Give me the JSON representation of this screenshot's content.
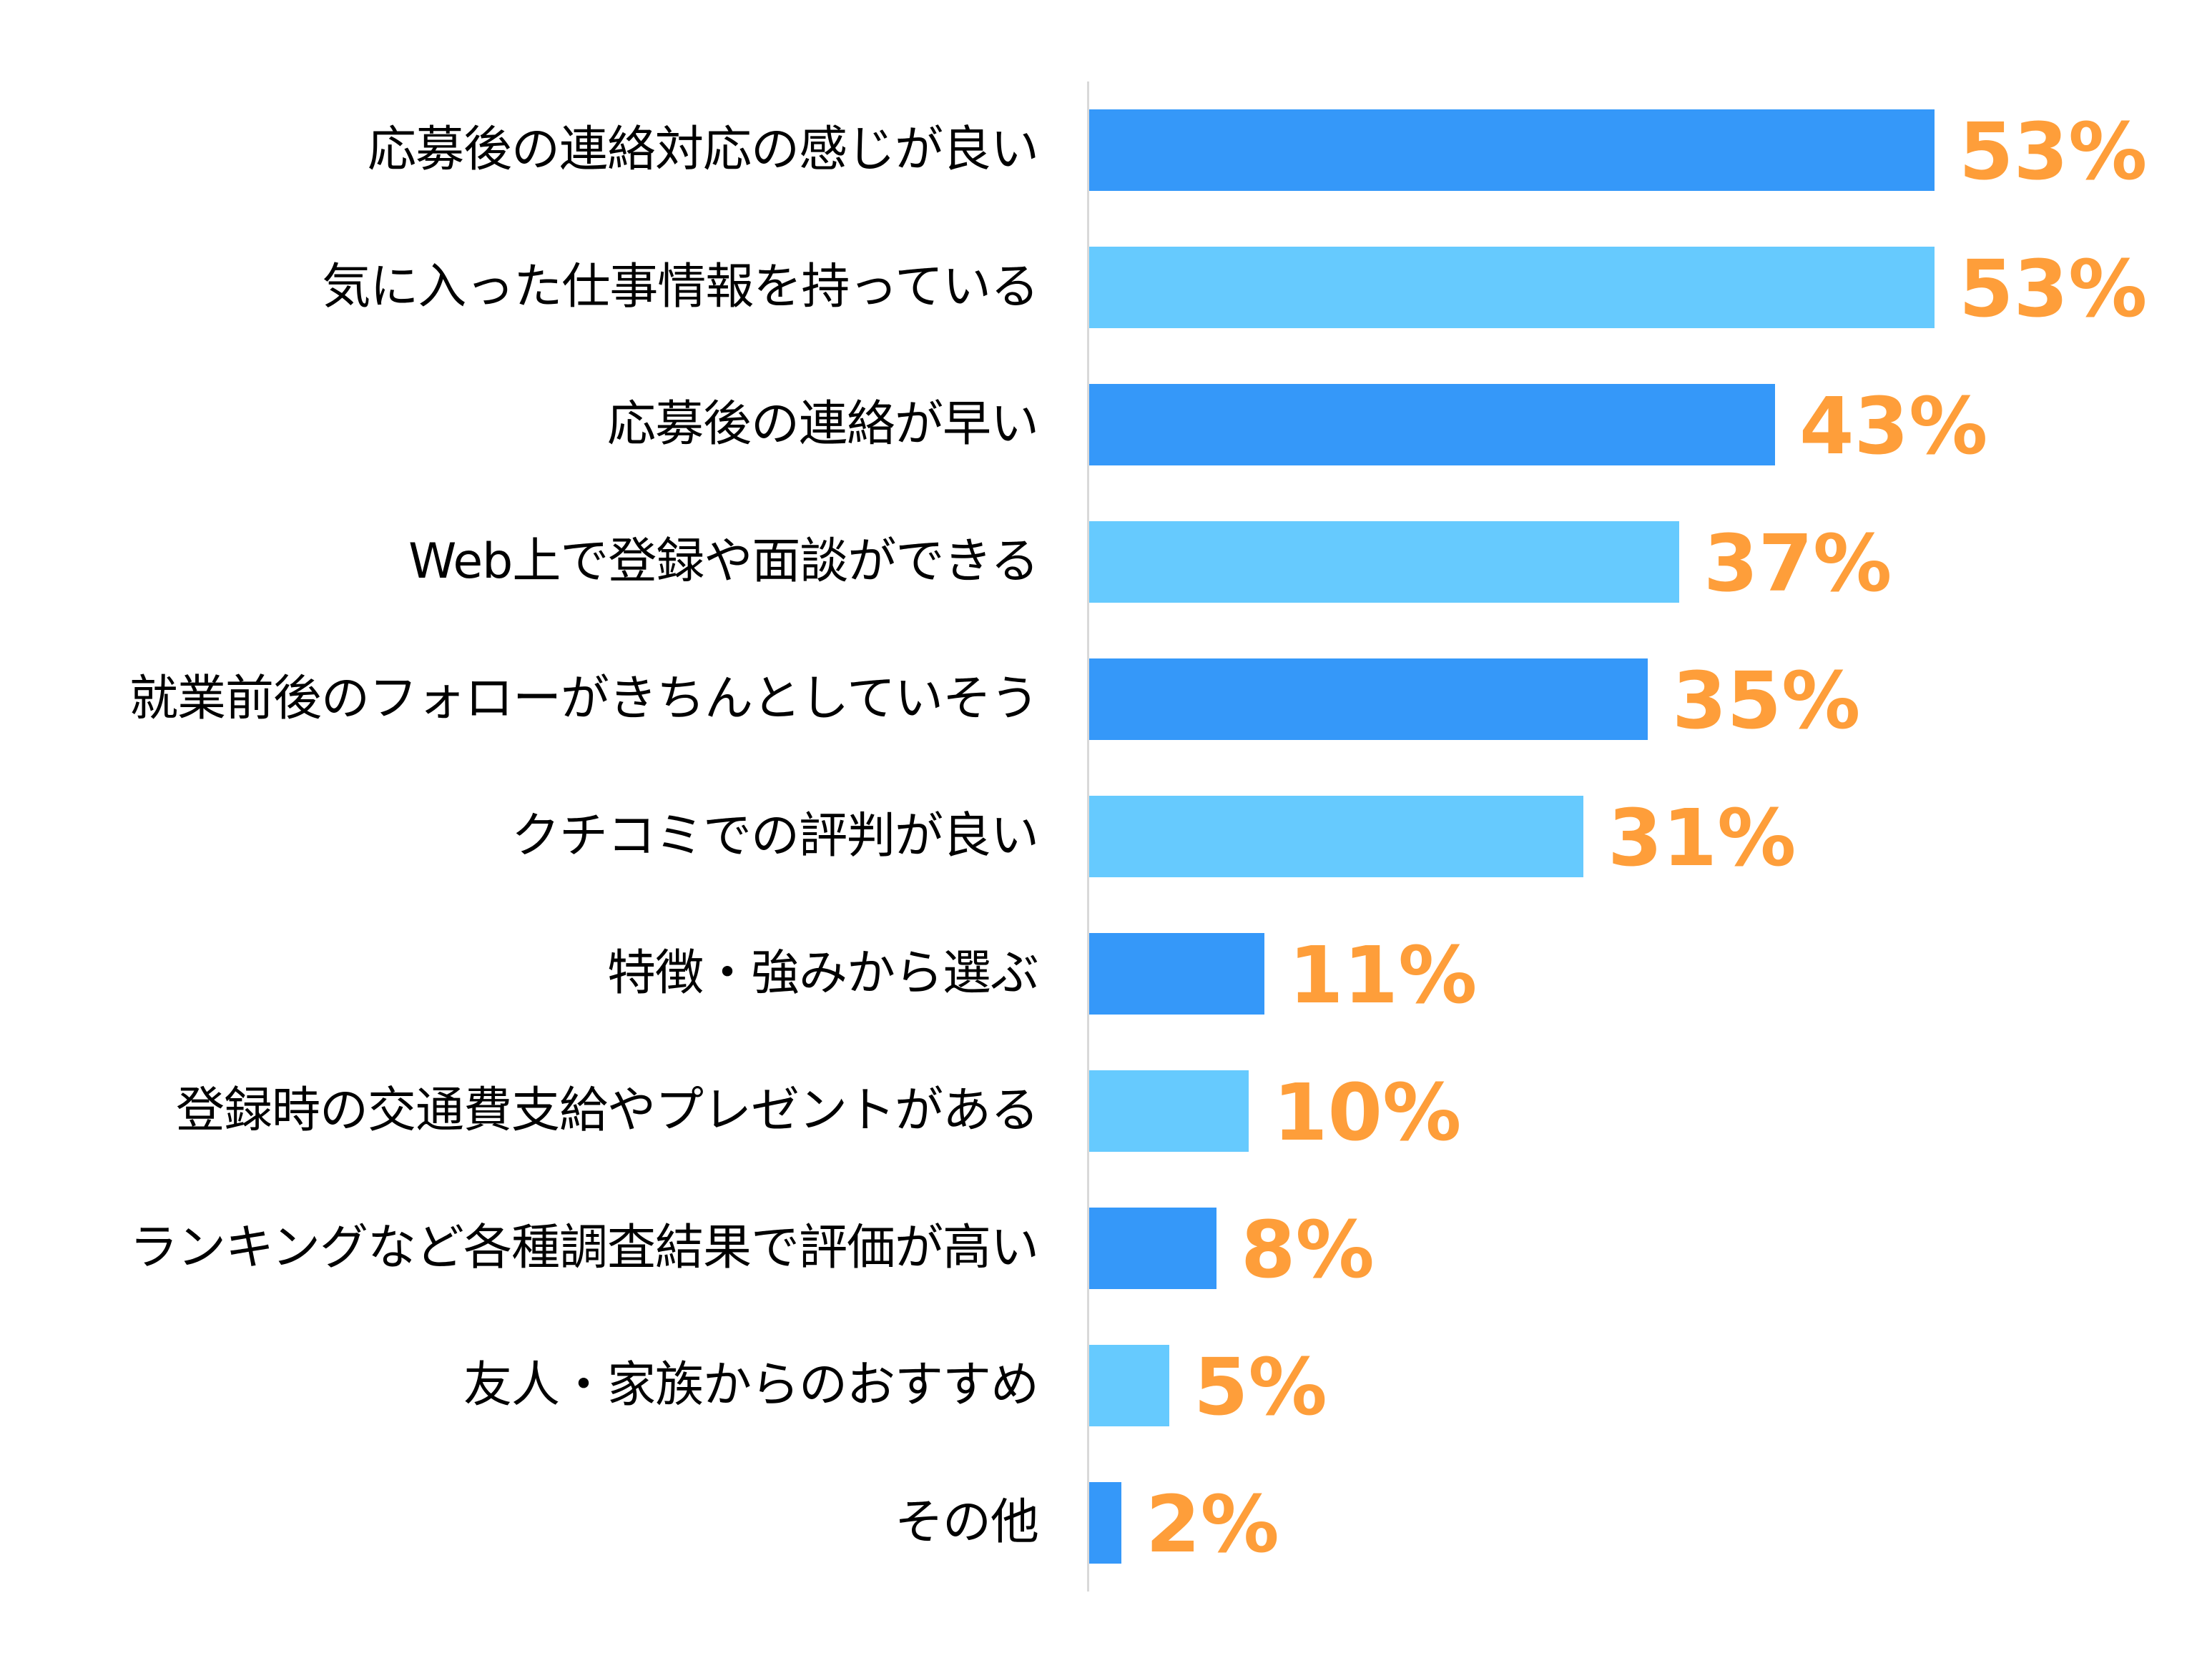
{
  "chart_data": {
    "type": "bar",
    "orientation": "horizontal",
    "title": "",
    "xlabel": "",
    "ylabel": "",
    "xlim": [
      0,
      60
    ],
    "grid": false,
    "legend": null,
    "unit": "%",
    "categories": [
      "応募後の連絡対応の感じが良い",
      "気に入った仕事情報を持っている",
      "応募後の連絡が早い",
      "Web上で登録や面談ができる",
      "就業前後のフォローがきちんとしていそう",
      "クチコミでの評判が良い",
      "特徴・強みから選ぶ",
      "登録時の交通費支給やプレゼントがある",
      "ランキングなど各種調査結果で評価が高い",
      "友人・家族からのおすすめ",
      "その他"
    ],
    "values": [
      53,
      53,
      43,
      37,
      35,
      31,
      11,
      10,
      8,
      5,
      2
    ],
    "value_labels": [
      "53%",
      "53%",
      "43%",
      "37%",
      "35%",
      "31%",
      "11%",
      "10%",
      "8%",
      "5%",
      "2%"
    ],
    "bar_colors": [
      "#3598F9",
      "#66CAFE",
      "#3598F9",
      "#66CAFE",
      "#3598F9",
      "#66CAFE",
      "#3598F9",
      "#66CAFE",
      "#3598F9",
      "#66CAFE",
      "#3598F9"
    ]
  },
  "colors": {
    "bar_dark": "#3598F9",
    "bar_light": "#66CAFE",
    "value_label": "#FE9E3A",
    "axis": "#D9D9D9",
    "category_text": "#000000"
  }
}
